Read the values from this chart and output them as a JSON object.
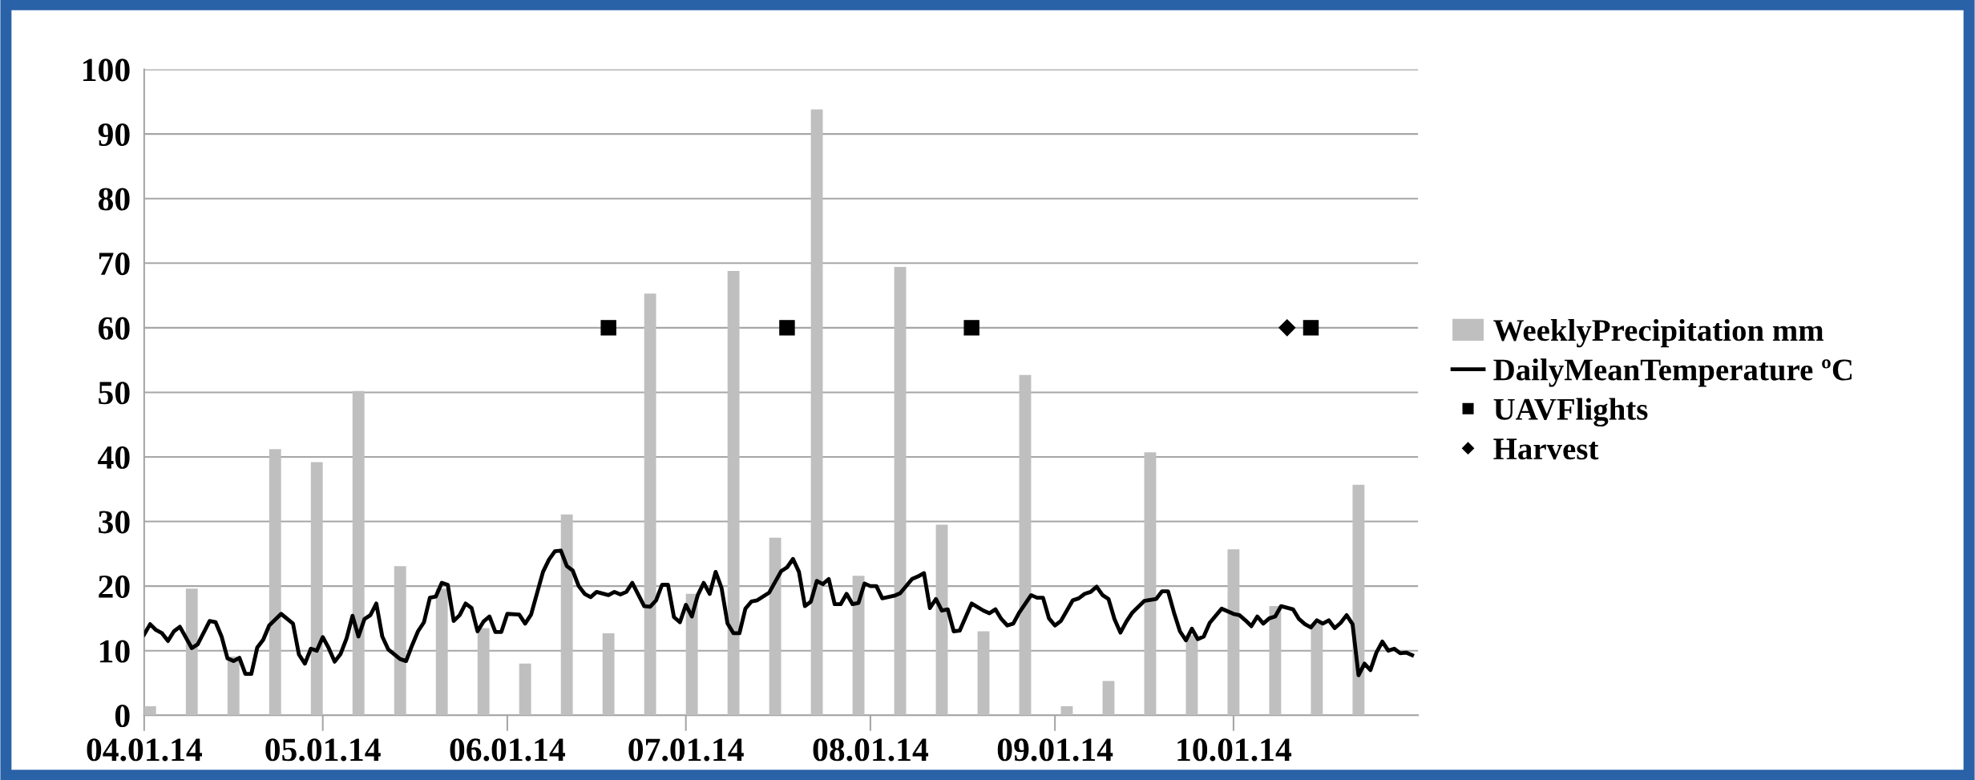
{
  "chart_data": {
    "type": "bar",
    "xlim": [
      "2014-04-01",
      "2014-11-01"
    ],
    "xticks": [
      {
        "value": "2014-04-01",
        "label": "04.01.14"
      },
      {
        "value": "2014-05-01",
        "label": "05.01.14"
      },
      {
        "value": "2014-06-01",
        "label": "06.01.14"
      },
      {
        "value": "2014-07-01",
        "label": "07.01.14"
      },
      {
        "value": "2014-08-01",
        "label": "08.01.14"
      },
      {
        "value": "2014-09-01",
        "label": "09.01.14"
      },
      {
        "value": "2014-10-01",
        "label": "10.01.14"
      }
    ],
    "ylim": [
      0,
      100
    ],
    "yticks": [
      0,
      10,
      20,
      30,
      40,
      50,
      60,
      70,
      80,
      90,
      100
    ],
    "grid": "y",
    "legend": "right",
    "series": [
      {
        "name": "WeeklyPrecipitation mm",
        "color": "#bfbfbf",
        "x": [
          "2014-04-02",
          "2014-04-09",
          "2014-04-16",
          "2014-04-23",
          "2014-04-30",
          "2014-05-07",
          "2014-05-14",
          "2014-05-21",
          "2014-05-28",
          "2014-06-04",
          "2014-06-11",
          "2014-06-18",
          "2014-06-25",
          "2014-07-02",
          "2014-07-09",
          "2014-07-16",
          "2014-07-23",
          "2014-07-30",
          "2014-08-06",
          "2014-08-13",
          "2014-08-20",
          "2014-08-27",
          "2014-09-03",
          "2014-09-10",
          "2014-09-17",
          "2014-09-24",
          "2014-10-01",
          "2014-10-08",
          "2014-10-15",
          "2014-10-22"
        ],
        "values": [
          1.4,
          19.6,
          9.1,
          41.2,
          39.2,
          50.2,
          23.1,
          19.6,
          13.5,
          8.0,
          31.1,
          12.7,
          65.3,
          18.8,
          68.8,
          27.5,
          93.8,
          21.6,
          69.4,
          29.5,
          13.0,
          52.7,
          1.4,
          5.3,
          40.7,
          12.4,
          25.7,
          16.9,
          14.2,
          35.7
        ]
      },
      {
        "name": "DailyMeanTemperature ºC",
        "type": "line",
        "color": "#000000",
        "line_style": "solid",
        "marker": "none",
        "x": [
          "2014-04-01",
          "2014-04-02",
          "2014-04-03",
          "2014-04-04",
          "2014-04-05",
          "2014-04-06",
          "2014-04-07",
          "2014-04-09",
          "2014-04-10",
          "2014-04-12",
          "2014-04-13",
          "2014-04-14",
          "2014-04-15",
          "2014-04-16",
          "2014-04-17",
          "2014-04-18",
          "2014-04-19",
          "2014-04-20",
          "2014-04-21",
          "2014-04-22",
          "2014-04-24",
          "2014-04-26",
          "2014-04-27",
          "2014-04-28",
          "2014-04-29",
          "2014-04-30",
          "2014-05-01",
          "2014-05-02",
          "2014-05-03",
          "2014-05-04",
          "2014-05-05",
          "2014-05-06",
          "2014-05-07",
          "2014-05-08",
          "2014-05-09",
          "2014-05-10",
          "2014-05-11",
          "2014-05-12",
          "2014-05-14",
          "2014-05-15",
          "2014-05-16",
          "2014-05-17",
          "2014-05-18",
          "2014-05-19",
          "2014-05-20",
          "2014-05-21",
          "2014-05-22",
          "2014-05-23",
          "2014-05-24",
          "2014-05-25",
          "2014-05-26",
          "2014-05-27",
          "2014-05-28",
          "2014-05-29",
          "2014-05-30",
          "2014-05-31",
          "2014-06-01",
          "2014-06-03",
          "2014-06-04",
          "2014-06-05",
          "2014-06-07",
          "2014-06-08",
          "2014-06-09",
          "2014-06-10",
          "2014-06-11",
          "2014-06-12",
          "2014-06-13",
          "2014-06-14",
          "2014-06-15",
          "2014-06-16",
          "2014-06-18",
          "2014-06-19",
          "2014-06-20",
          "2014-06-21",
          "2014-06-22",
          "2014-06-24",
          "2014-06-25",
          "2014-06-26",
          "2014-06-27",
          "2014-06-28",
          "2014-06-29",
          "2014-06-30",
          "2014-07-01",
          "2014-07-02",
          "2014-07-03",
          "2014-07-04",
          "2014-07-05",
          "2014-07-06",
          "2014-07-07",
          "2014-07-08",
          "2014-07-09",
          "2014-07-10",
          "2014-07-11",
          "2014-07-12",
          "2014-07-13",
          "2014-07-15",
          "2014-07-17",
          "2014-07-18",
          "2014-07-19",
          "2014-07-20",
          "2014-07-21",
          "2014-07-22",
          "2014-07-23",
          "2014-07-24",
          "2014-07-25",
          "2014-07-26",
          "2014-07-27",
          "2014-07-28",
          "2014-07-29",
          "2014-07-30",
          "2014-07-31",
          "2014-08-01",
          "2014-08-02",
          "2014-08-03",
          "2014-08-05",
          "2014-08-06",
          "2014-08-08",
          "2014-08-09",
          "2014-08-10",
          "2014-08-11",
          "2014-08-12",
          "2014-08-13",
          "2014-08-14",
          "2014-08-15",
          "2014-08-16",
          "2014-08-18",
          "2014-08-20",
          "2014-08-21",
          "2014-08-22",
          "2014-08-23",
          "2014-08-24",
          "2014-08-25",
          "2014-08-26",
          "2014-08-28",
          "2014-08-29",
          "2014-08-30",
          "2014-08-31",
          "2014-09-01",
          "2014-09-02",
          "2014-09-04",
          "2014-09-05",
          "2014-09-06",
          "2014-09-07",
          "2014-09-08",
          "2014-09-09",
          "2014-09-10",
          "2014-09-11",
          "2014-09-12",
          "2014-09-13",
          "2014-09-14",
          "2014-09-16",
          "2014-09-18",
          "2014-09-19",
          "2014-09-20",
          "2014-09-21",
          "2014-09-22",
          "2014-09-23",
          "2014-09-24",
          "2014-09-25",
          "2014-09-26",
          "2014-09-27",
          "2014-09-29",
          "2014-10-01",
          "2014-10-02",
          "2014-10-03",
          "2014-10-04",
          "2014-10-05",
          "2014-10-06",
          "2014-10-07",
          "2014-10-08",
          "2014-10-09",
          "2014-10-11",
          "2014-10-12",
          "2014-10-13",
          "2014-10-14",
          "2014-10-15",
          "2014-10-16",
          "2014-10-17",
          "2014-10-18",
          "2014-10-19",
          "2014-10-20",
          "2014-10-21",
          "2014-10-22",
          "2014-10-23",
          "2014-10-24",
          "2014-10-25",
          "2014-10-26",
          "2014-10-27",
          "2014-10-28",
          "2014-10-29",
          "2014-10-30",
          "2014-10-31"
        ],
        "values": [
          12.5,
          14.1,
          13.2,
          12.7,
          11.5,
          13.0,
          13.7,
          10.4,
          11.0,
          14.6,
          14.4,
          12.2,
          8.8,
          8.4,
          8.9,
          6.4,
          6.4,
          10.5,
          11.7,
          13.9,
          15.7,
          14.2,
          9.4,
          8.0,
          10.3,
          10.0,
          12.1,
          10.4,
          8.3,
          9.5,
          11.9,
          15.4,
          12.2,
          14.9,
          15.5,
          17.3,
          12.2,
          10.2,
          8.7,
          8.4,
          10.8,
          13.0,
          14.4,
          18.2,
          18.4,
          20.5,
          20.2,
          14.6,
          15.5,
          17.3,
          16.6,
          13.0,
          14.5,
          15.3,
          12.9,
          12.9,
          15.7,
          15.6,
          14.2,
          15.6,
          22.2,
          24.1,
          25.4,
          25.5,
          23.1,
          22.4,
          20.0,
          18.8,
          18.3,
          19.1,
          18.6,
          19.1,
          18.7,
          19.1,
          20.5,
          16.9,
          16.8,
          17.8,
          20.2,
          20.2,
          15.2,
          14.4,
          17.1,
          15.3,
          18.6,
          20.5,
          18.8,
          22.2,
          19.7,
          14.2,
          12.7,
          12.7,
          16.5,
          17.6,
          17.8,
          19.0,
          22.3,
          22.9,
          24.2,
          22.2,
          16.9,
          17.6,
          20.8,
          20.3,
          21.1,
          17.2,
          17.2,
          18.8,
          17.2,
          17.4,
          20.4,
          20.0,
          20.0,
          18.1,
          18.5,
          18.9,
          21.1,
          21.5,
          22.0,
          16.6,
          18.0,
          16.2,
          16.4,
          13.0,
          13.1,
          17.3,
          16.2,
          15.8,
          16.4,
          14.9,
          13.9,
          14.2,
          15.9,
          18.6,
          18.2,
          18.2,
          15.0,
          13.9,
          14.6,
          17.8,
          18.1,
          18.8,
          19.1,
          19.9,
          18.6,
          18.0,
          14.9,
          12.8,
          14.5,
          15.9,
          17.7,
          18.0,
          19.2,
          19.2,
          15.9,
          13.0,
          11.6,
          13.4,
          11.8,
          12.2,
          14.3,
          16.5,
          15.7,
          15.5,
          14.7,
          13.8,
          15.3,
          14.2,
          15.0,
          15.3,
          16.9,
          16.4,
          14.9,
          14.1,
          13.6,
          14.7,
          14.2,
          14.7,
          13.5,
          14.3,
          15.5,
          14.1,
          6.2,
          8.0,
          7.0,
          9.7,
          11.4,
          10.0,
          10.3,
          9.6,
          9.7,
          9.3
        ]
      },
      {
        "name": "UAVFlights",
        "type": "scatter",
        "color": "#000000",
        "marker": "square",
        "x": [
          "2014-06-18",
          "2014-07-18",
          "2014-08-18",
          "2014-10-14"
        ],
        "values": [
          60,
          60,
          60,
          60
        ]
      },
      {
        "name": "Harvest",
        "type": "scatter",
        "color": "#000000",
        "marker": "diamond",
        "x": [
          "2014-10-10"
        ],
        "values": [
          60
        ]
      }
    ]
  }
}
